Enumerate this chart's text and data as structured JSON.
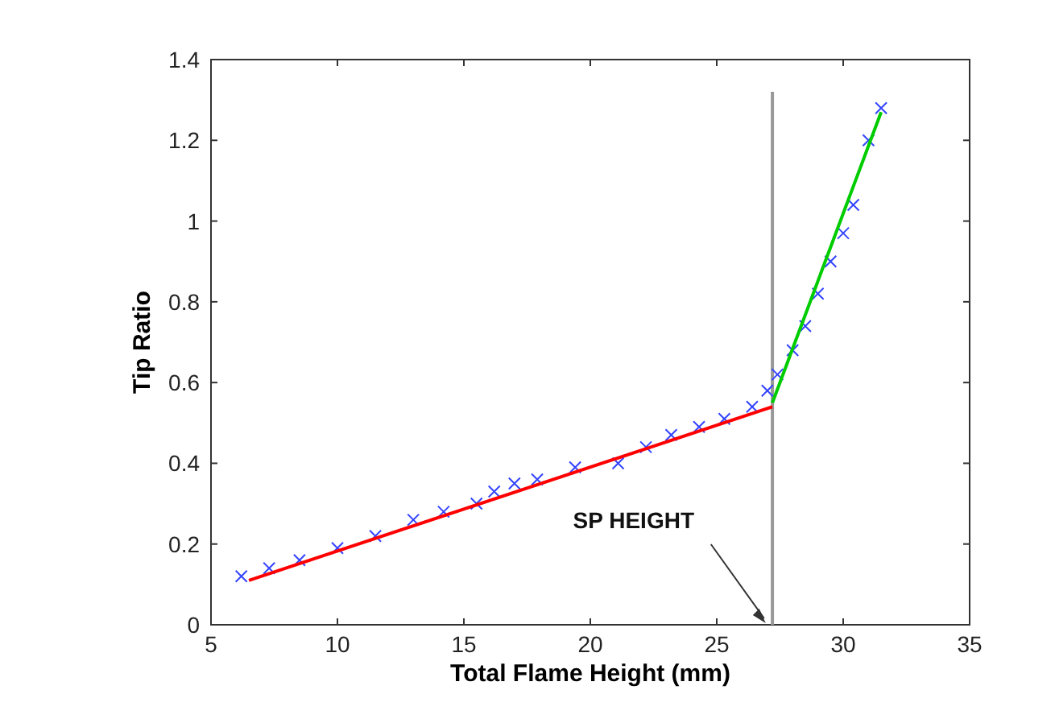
{
  "chart_data": {
    "type": "scatter",
    "xlabel": "Total Flame Height (mm)",
    "ylabel": "Tip Ratio",
    "xlim": [
      5,
      35
    ],
    "xticks": [
      5,
      10,
      15,
      20,
      25,
      30,
      35
    ],
    "ylim": [
      0,
      1.4
    ],
    "yticks": [
      0,
      0.2,
      0.4,
      0.6,
      0.8,
      1,
      1.2,
      1.4
    ],
    "grid": false,
    "series": [
      {
        "color": "#3344ff",
        "marker": "cross",
        "x": [
          6.2,
          7.3,
          8.5,
          10,
          11.5,
          13,
          14.2,
          15.5,
          16.2,
          17,
          17.9,
          19.4,
          21.1,
          22.2,
          23.2,
          24.3,
          25.3,
          26.4,
          27,
          27.4,
          28,
          28.5,
          29,
          29.5,
          30,
          30.4,
          31,
          31.5
        ],
        "values": [
          0.12,
          0.14,
          0.16,
          0.19,
          0.22,
          0.26,
          0.28,
          0.3,
          0.33,
          0.35,
          0.36,
          0.39,
          0.4,
          0.44,
          0.47,
          0.49,
          0.51,
          0.54,
          0.58,
          0.62,
          0.68,
          0.74,
          0.82,
          0.9,
          0.97,
          1.04,
          1.2,
          1.28
        ]
      },
      {
        "type": "line",
        "color": "#ff0000",
        "marker": "none",
        "line_style": "solid",
        "x": [
          6.5,
          27.2
        ],
        "values": [
          0.11,
          0.54
        ]
      },
      {
        "type": "line",
        "color": "#00cc00",
        "marker": "none",
        "line_style": "solid",
        "x": [
          27.2,
          31.5
        ],
        "values": [
          0.55,
          1.27
        ]
      }
    ],
    "ref_lines": [
      {
        "axis": "x",
        "value": 27.2,
        "color": "#999999"
      }
    ],
    "annotations": [
      {
        "text": "SP HEIGHT",
        "x": 27,
        "y": 0
      }
    ]
  }
}
